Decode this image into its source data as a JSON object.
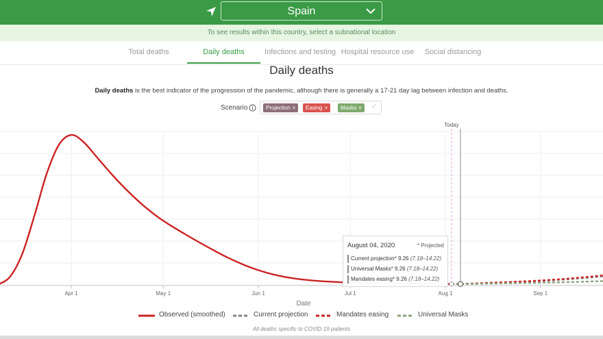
{
  "header": {
    "country": "Spain",
    "subtitle": "To see results within this country, select a subnational location"
  },
  "tabs": [
    "Total deaths",
    "Daily deaths",
    "Infections and testing",
    "Hospital resource use",
    "Social distancing"
  ],
  "active_tab": 1,
  "page_title": "Daily deaths",
  "description": {
    "bold": "Daily deaths",
    "rest": " is the best indicator of the progression of the pandemic, although there is generally a 17-21 day lag between infection and deaths."
  },
  "scenario": {
    "label": "Scenario",
    "chips": [
      {
        "label": "Projection",
        "color": "#8c6e77"
      },
      {
        "label": "Easing",
        "color": "#d9534f"
      },
      {
        "label": "Masks",
        "color": "#7faa6e"
      }
    ],
    "close_glyph": "×",
    "confirm_glyph": "✓"
  },
  "colors": {
    "observed": "#cc2222",
    "projection": "#8a7f83",
    "easing": "#cc2222",
    "masks": "#8aa07a",
    "brand_green": "#3a9a45"
  },
  "chart_data": {
    "type": "line",
    "xlabel": "Date",
    "x_ticks": [
      "Apr 1",
      "May 1",
      "Jun 1",
      "Jul 1",
      "Aug 1",
      "Sep 1"
    ],
    "today_label": "Today",
    "today_date": "2020-08-03",
    "y_gridlines": 8,
    "series": [
      {
        "name": "Observed (smoothed)",
        "style": "solid",
        "points": [
          [
            "2020-03-08",
            5
          ],
          [
            "2020-03-12",
            50
          ],
          [
            "2020-03-16",
            180
          ],
          [
            "2020-03-20",
            400
          ],
          [
            "2020-03-24",
            640
          ],
          [
            "2020-03-28",
            805
          ],
          [
            "2020-04-01",
            860
          ],
          [
            "2020-04-05",
            820
          ],
          [
            "2020-04-10",
            720
          ],
          [
            "2020-04-15",
            620
          ],
          [
            "2020-04-20",
            530
          ],
          [
            "2020-04-25",
            450
          ],
          [
            "2020-05-01",
            370
          ],
          [
            "2020-05-08",
            295
          ],
          [
            "2020-05-15",
            225
          ],
          [
            "2020-05-22",
            160
          ],
          [
            "2020-05-30",
            100
          ],
          [
            "2020-06-08",
            55
          ],
          [
            "2020-06-18",
            30
          ],
          [
            "2020-07-01",
            17
          ],
          [
            "2020-07-15",
            12
          ],
          [
            "2020-07-28",
            10
          ],
          [
            "2020-08-03",
            9
          ]
        ]
      },
      {
        "name": "Current projection",
        "style": "dashed",
        "points": [
          [
            "2020-08-03",
            9
          ],
          [
            "2020-08-10",
            11
          ],
          [
            "2020-08-20",
            17
          ],
          [
            "2020-08-31",
            25
          ],
          [
            "2020-09-10",
            36
          ],
          [
            "2020-09-20",
            50
          ],
          [
            "2020-09-30",
            70
          ]
        ]
      },
      {
        "name": "Mandates easing",
        "style": "dashed",
        "points": [
          [
            "2020-08-03",
            9
          ],
          [
            "2020-08-10",
            12
          ],
          [
            "2020-08-20",
            19
          ],
          [
            "2020-08-31",
            28
          ],
          [
            "2020-09-10",
            40
          ],
          [
            "2020-09-20",
            56
          ],
          [
            "2020-09-30",
            78
          ]
        ]
      },
      {
        "name": "Universal Masks",
        "style": "dashed",
        "points": [
          [
            "2020-08-03",
            9
          ],
          [
            "2020-08-10",
            10
          ],
          [
            "2020-08-20",
            13
          ],
          [
            "2020-08-31",
            16
          ],
          [
            "2020-09-10",
            20
          ],
          [
            "2020-09-20",
            25
          ],
          [
            "2020-09-30",
            31
          ]
        ]
      }
    ],
    "tooltip": {
      "date": "August 04, 2020",
      "note": "* Projected",
      "rows": [
        {
          "label": "Current projection*",
          "value": "9.26",
          "range": "(7.18–14.22)"
        },
        {
          "label": "Universal Masks*",
          "value": "9.26",
          "range": "(7.18–14.22)"
        },
        {
          "label": "Mandates easing*",
          "value": "9.26",
          "range": "(7.18–14.22)"
        }
      ]
    }
  },
  "footnote": "All deaths specific to COVID-19 patients"
}
